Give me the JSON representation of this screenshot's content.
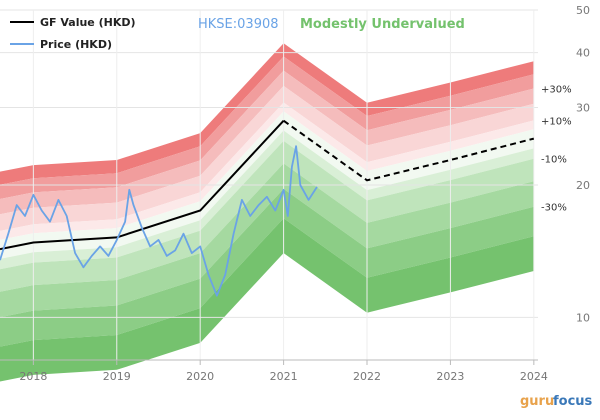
{
  "chart_data": {
    "type": "area",
    "ticker": "HKSE:03908",
    "valuation": "Modestly Undervalued",
    "legend": [
      {
        "label": "GF Value (HKD)",
        "color": "#000000"
      },
      {
        "label": "Price (HKD)",
        "color": "#6aa3e6"
      }
    ],
    "y_scale": "log",
    "ylim": [
      8,
      50
    ],
    "y_ticks": [
      10,
      20,
      30,
      40,
      50
    ],
    "xlim": [
      2017.6,
      2024.05
    ],
    "x_ticks": [
      2018,
      2019,
      2020,
      2021,
      2022,
      2023,
      2024
    ],
    "gf_value": {
      "x": [
        2017.6,
        2018.0,
        2019.0,
        2020.0,
        2021.0,
        2022.0,
        2023.0,
        2024.0
      ],
      "values": [
        14.3,
        14.8,
        15.2,
        17.5,
        28.0,
        20.5,
        22.8,
        25.5
      ]
    },
    "gf_value_projection_start": 2021.0,
    "band_multipliers": [
      1.5,
      1.4,
      1.3,
      1.2,
      1.1,
      1.05,
      0.95,
      0.9,
      0.8,
      0.7,
      0.6,
      0.5
    ],
    "band_colors": [
      "#ee7b7b",
      "#f19d9d",
      "#f5bcbc",
      "#f9d6d6",
      "#fce9e9",
      "#f2f9f1",
      "#d9efd6",
      "#bfe4bb",
      "#a5d9a0",
      "#8ccd86",
      "#75c26e"
    ],
    "band_labels": [
      "+30%",
      "+10%",
      "-10%",
      "-30%"
    ],
    "price": {
      "x": [
        2017.6,
        2017.7,
        2017.8,
        2017.9,
        2018.0,
        2018.1,
        2018.2,
        2018.3,
        2018.4,
        2018.5,
        2018.6,
        2018.7,
        2018.8,
        2018.9,
        2019.0,
        2019.1,
        2019.15,
        2019.2,
        2019.3,
        2019.4,
        2019.5,
        2019.6,
        2019.7,
        2019.8,
        2019.9,
        2020.0,
        2020.1,
        2020.2,
        2020.3,
        2020.4,
        2020.5,
        2020.6,
        2020.7,
        2020.8,
        2020.9,
        2021.0,
        2021.05,
        2021.1,
        2021.15,
        2021.2,
        2021.3,
        2021.4
      ],
      "values": [
        13.5,
        15.5,
        18.0,
        17.0,
        19.0,
        17.5,
        16.5,
        18.5,
        17.0,
        14.0,
        13.0,
        13.8,
        14.5,
        13.8,
        15.0,
        16.5,
        19.5,
        18.0,
        16.0,
        14.5,
        15.0,
        13.8,
        14.2,
        15.5,
        14.0,
        14.5,
        12.5,
        11.2,
        12.5,
        15.5,
        18.5,
        17.0,
        18.0,
        18.8,
        17.5,
        19.5,
        17.0,
        22.0,
        24.5,
        20.0,
        18.5,
        19.8
      ]
    }
  }
}
